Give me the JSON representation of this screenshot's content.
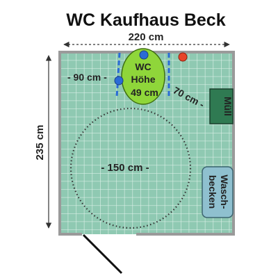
{
  "title": "WC Kaufhaus Beck",
  "dimensions": {
    "width": "220 cm",
    "depth": "235 cm",
    "side_left": "- 90 cm -",
    "side_right": "70 cm -",
    "turning_circle": "- 150 cm -"
  },
  "wc": {
    "line1": "WC",
    "line2": "Höhe",
    "line3": "49 cm"
  },
  "muell": "Müll",
  "sink": {
    "line1": "Wasch-",
    "line2": "becken"
  },
  "colors": {
    "floor": "#8fc9b2",
    "tile_grid": "#d9efe6",
    "wall": "#9a9a9a",
    "wc_fill": "#8fd63a",
    "wc_stroke": "#3e6e10",
    "muell_fill": "#2f7a52",
    "sink_fill": "#8fc0cf",
    "grab_bar": "#2a6bd6",
    "red_button": "#e8452a",
    "text": "#111111"
  }
}
